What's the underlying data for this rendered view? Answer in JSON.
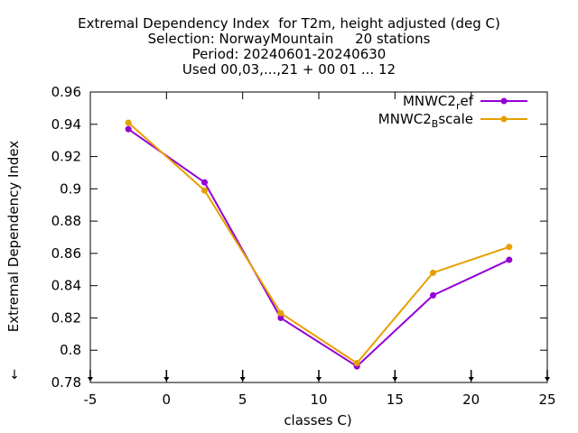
{
  "chart_data": {
    "type": "line",
    "title_lines": [
      "Extremal Dependency Index  for T2m, height adjusted (deg C)",
      "Selection: NorwayMountain     20 stations",
      "Period: 20240601-20240630",
      "Used 00,03,...,21 + 00 01 ... 12"
    ],
    "xlabel": "classes C)",
    "ylabel": "Extremal Dependency Index",
    "xlim": [
      -5,
      25
    ],
    "ylim": [
      0.78,
      0.96
    ],
    "xticks": [
      -5,
      0,
      5,
      10,
      15,
      20,
      25
    ],
    "yticks": [
      0.78,
      0.8,
      0.82,
      0.84,
      0.86,
      0.88,
      0.9,
      0.92,
      0.94,
      0.96
    ],
    "x": [
      -2.5,
      2.5,
      7.5,
      12.5,
      17.5,
      22.5
    ],
    "series": [
      {
        "name": "MNWC2_ref",
        "legend_main": "MNWC2",
        "legend_sub": "r",
        "legend_rest": "ef",
        "color": "#9400d3",
        "values": [
          0.937,
          0.904,
          0.82,
          0.79,
          0.834,
          0.856
        ]
      },
      {
        "name": "MNWC2_Bscale",
        "legend_main": "MNWC2",
        "legend_sub": "B",
        "legend_rest": "scale",
        "color": "#e69f00",
        "values": [
          0.941,
          0.899,
          0.823,
          0.792,
          0.848,
          0.864
        ]
      }
    ],
    "legend_position": "top-right",
    "grid": false,
    "ylabel_side_marker": "↓"
  }
}
